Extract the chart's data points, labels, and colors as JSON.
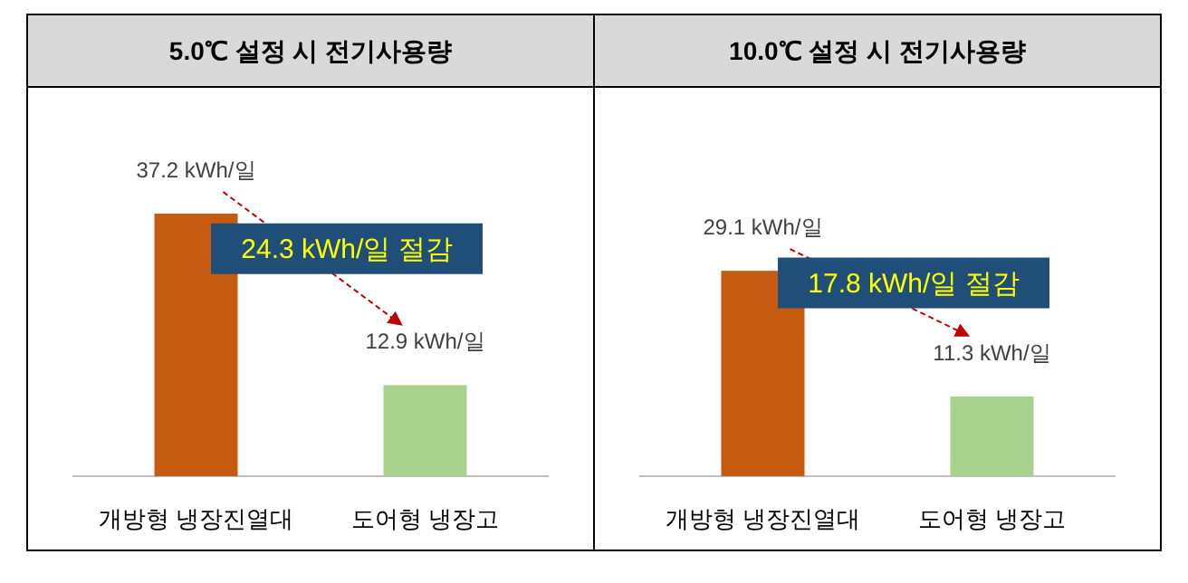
{
  "chart_data": [
    {
      "type": "bar",
      "title": "5.0℃ 설정 시 전기사용량",
      "categories": [
        "개방형 냉장진열대",
        "도어형 냉장고"
      ],
      "values": [
        37.2,
        12.9
      ],
      "colors": [
        "#c55a11",
        "#a9d18e"
      ],
      "value_labels": [
        "37.2 kWh/일",
        "12.9 kWh/일"
      ],
      "annotations": [
        "24.3 kWh/일 절감"
      ]
    },
    {
      "type": "bar",
      "title": "10.0℃ 설정 시 전기사용량",
      "categories": [
        "개방형 냉장진열대",
        "도어형 냉장고"
      ],
      "values": [
        29.1,
        11.3
      ],
      "colors": [
        "#c55a11",
        "#a9d18e"
      ],
      "value_labels": [
        "29.1 kWh/일",
        "11.3 kWh/일"
      ],
      "annotations": [
        "17.8 kWh/일 절감"
      ]
    }
  ]
}
